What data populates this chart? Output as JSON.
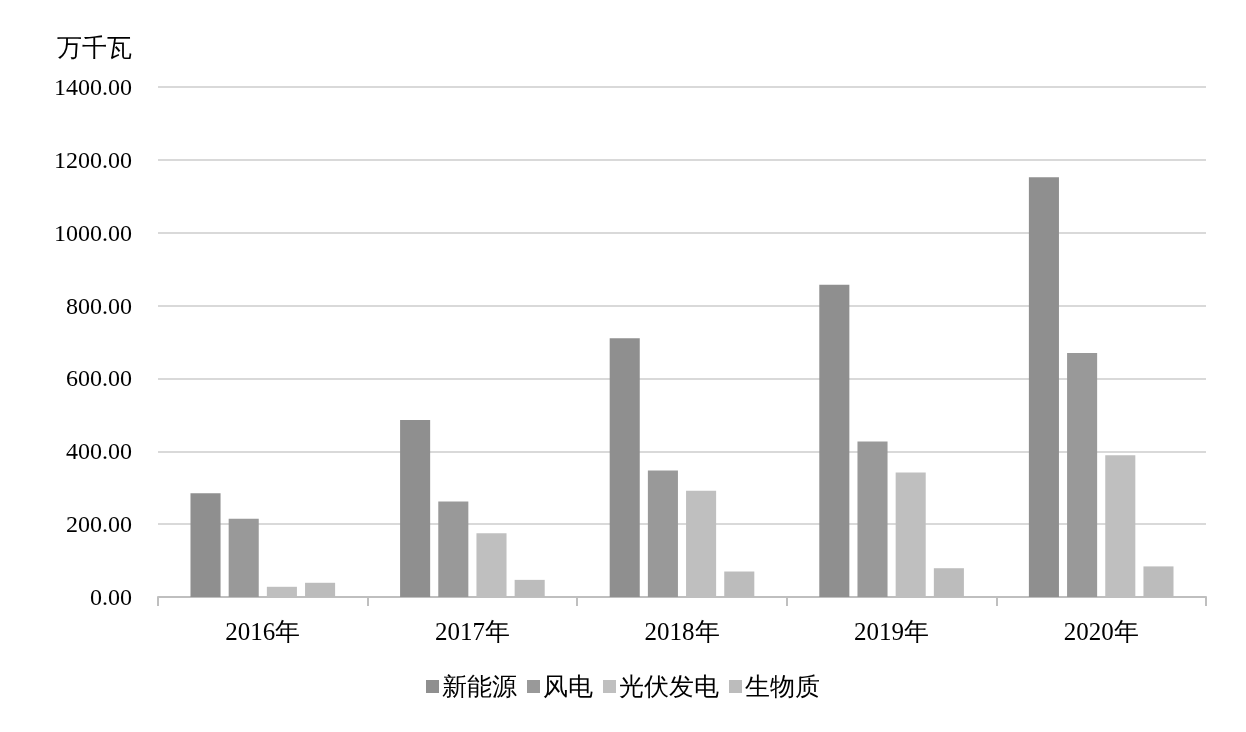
{
  "chart_data": {
    "type": "bar",
    "ylabel": "万千瓦",
    "categories": [
      "2016年",
      "2017年",
      "2018年",
      "2019年",
      "2020年"
    ],
    "series": [
      {
        "name": "新能源",
        "color": "#8f8f8f",
        "values": [
          285,
          486,
          710,
          857,
          1152
        ]
      },
      {
        "name": "风电",
        "color": "#999999",
        "values": [
          215,
          262,
          347,
          427,
          670
        ]
      },
      {
        "name": "光伏发电",
        "color": "#bfbfbf",
        "values": [
          28,
          175,
          292,
          342,
          389
        ]
      },
      {
        "name": "生物质",
        "color": "#bcbcbc",
        "values": [
          39,
          47,
          70,
          79,
          84
        ]
      }
    ],
    "ylim": [
      0,
      1400
    ],
    "yticks": [
      {
        "value": 0,
        "label": "0.00"
      },
      {
        "value": 200,
        "label": "200.00"
      },
      {
        "value": 400,
        "label": "400.00"
      },
      {
        "value": 600,
        "label": "600.00"
      },
      {
        "value": 800,
        "label": "800.00"
      },
      {
        "value": 1000,
        "label": "1000.00"
      },
      {
        "value": 1200,
        "label": "1200.00"
      },
      {
        "value": 1400,
        "label": "1400.00"
      }
    ],
    "grid": "y",
    "legend": "bottom"
  }
}
